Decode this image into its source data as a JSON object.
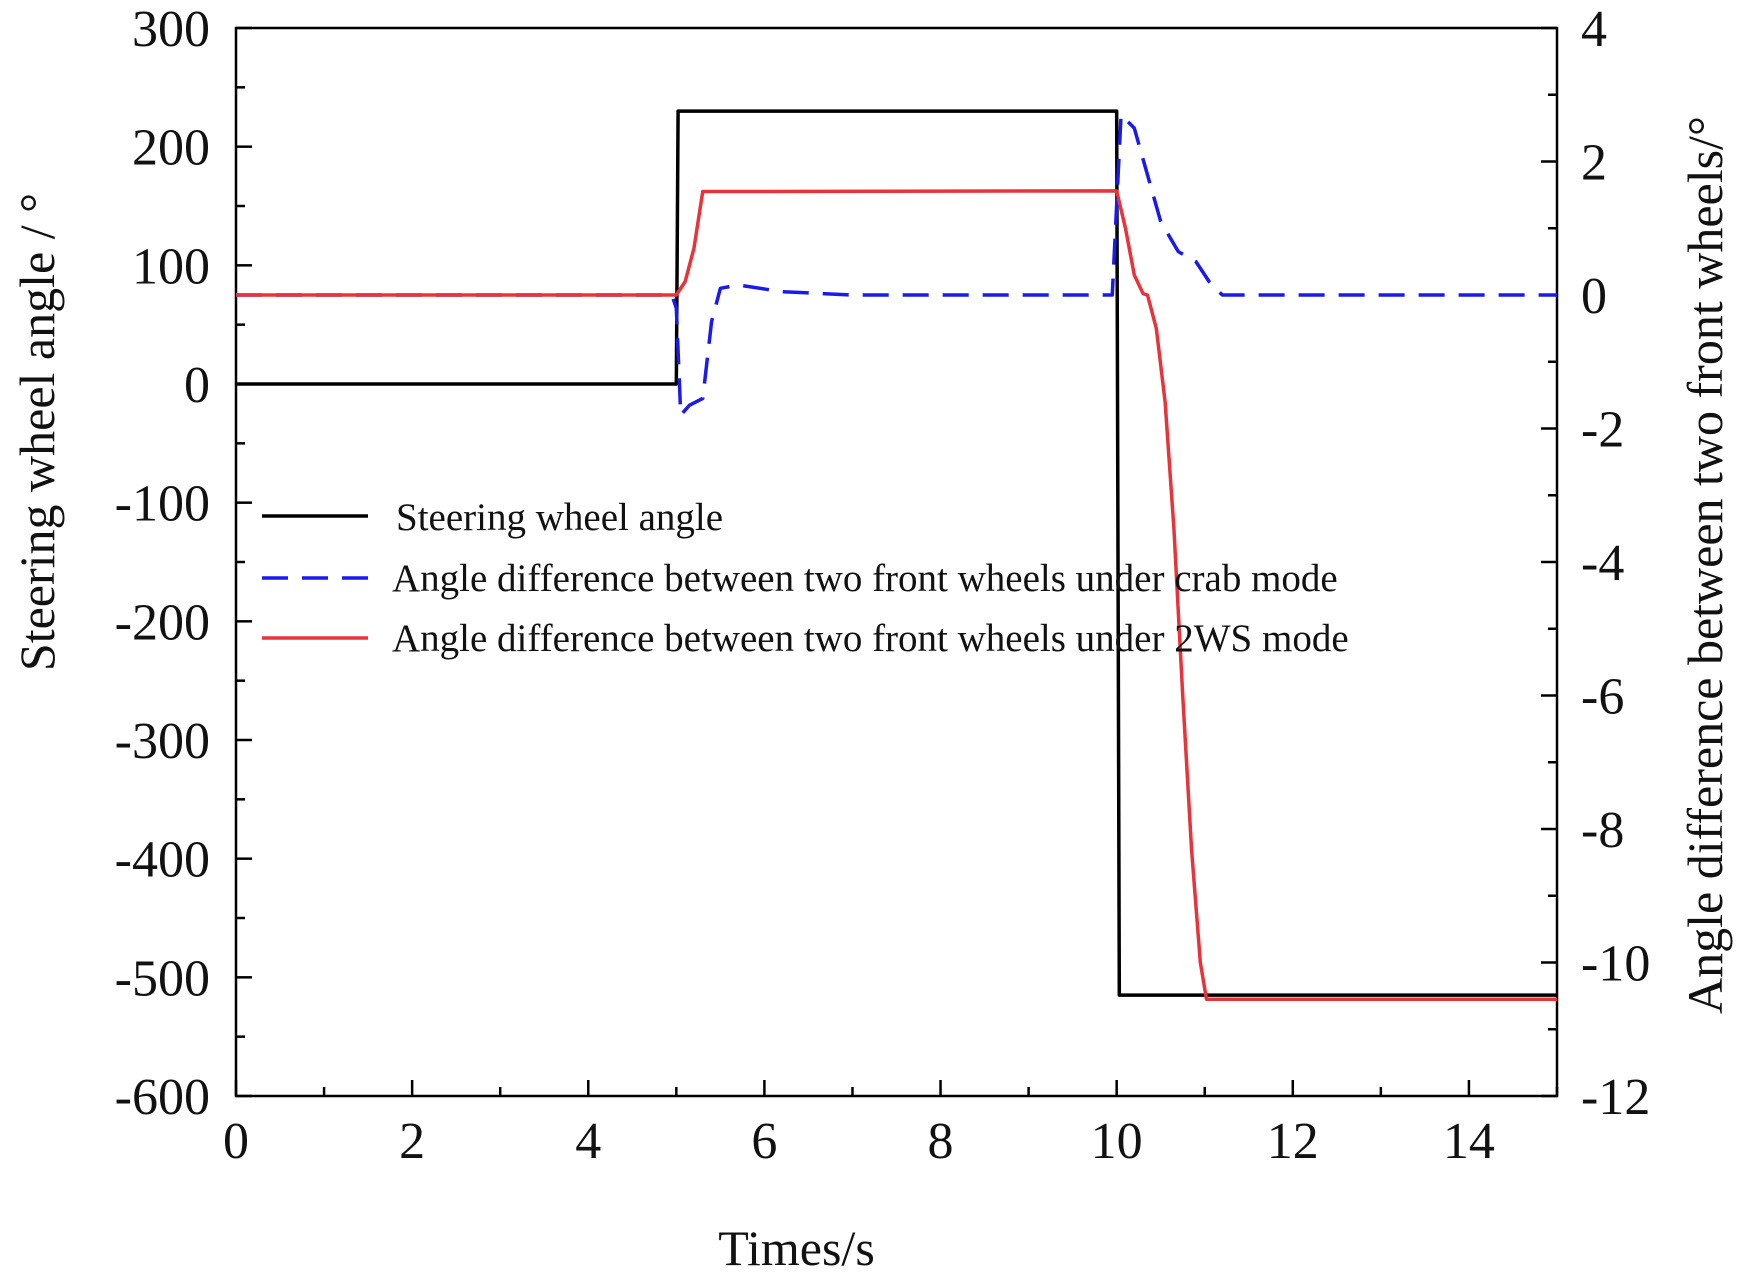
{
  "chart_data": {
    "type": "line",
    "xlabel": "Times/s",
    "ylabel_left": "Steering wheel angle / °",
    "ylabel_right": "Angle difference between two front wheels/°",
    "xlim": [
      0,
      15
    ],
    "ylim_left": [
      -600,
      300
    ],
    "ylim_right": [
      -12,
      4
    ],
    "x_ticks": [
      "0",
      "2",
      "4",
      "6",
      "8",
      "10",
      "12",
      "14"
    ],
    "y_left_ticks": [
      "300",
      "200",
      "100",
      "0",
      "-100",
      "-200",
      "-300",
      "-400",
      "-500",
      "-600"
    ],
    "y_right_ticks": [
      "4",
      "2",
      "0",
      "-2",
      "-4",
      "-6",
      "-8",
      "-10",
      "-12"
    ],
    "legend_position": "center-left",
    "series": [
      {
        "name": "Steering wheel angle",
        "axis": "left",
        "color": "#000000",
        "style": "solid",
        "points": [
          [
            0,
            0
          ],
          [
            5.0,
            0
          ],
          [
            5.02,
            230
          ],
          [
            10.0,
            230
          ],
          [
            10.03,
            -515
          ],
          [
            15,
            -515
          ]
        ]
      },
      {
        "name": "Angle difference between two front wheels under crab mode",
        "axis": "right",
        "color": "#1a1aee",
        "style": "dashed",
        "points": [
          [
            0,
            0
          ],
          [
            4.95,
            0
          ],
          [
            5.0,
            -0.2
          ],
          [
            5.05,
            -1.8
          ],
          [
            5.15,
            -1.65
          ],
          [
            5.3,
            -1.55
          ],
          [
            5.4,
            -0.4
          ],
          [
            5.5,
            0.1
          ],
          [
            5.7,
            0.15
          ],
          [
            6.2,
            0.05
          ],
          [
            7,
            0
          ],
          [
            9.95,
            0
          ],
          [
            10.05,
            2.7
          ],
          [
            10.2,
            2.5
          ],
          [
            10.35,
            1.8
          ],
          [
            10.5,
            1.1
          ],
          [
            10.7,
            0.65
          ],
          [
            10.9,
            0.5
          ],
          [
            11.05,
            0.2
          ],
          [
            11.2,
            0
          ],
          [
            15,
            0
          ]
        ]
      },
      {
        "name": "Angle difference between two front wheels under 2WS mode",
        "axis": "right",
        "color": "#e8333a",
        "style": "solid",
        "points": [
          [
            0,
            0
          ],
          [
            5.0,
            0
          ],
          [
            5.1,
            0.2
          ],
          [
            5.2,
            0.7
          ],
          [
            5.3,
            1.55
          ],
          [
            10.0,
            1.56
          ],
          [
            10.1,
            1.0
          ],
          [
            10.2,
            0.3
          ],
          [
            10.3,
            0.02
          ],
          [
            10.35,
            0
          ],
          [
            10.45,
            -0.5
          ],
          [
            10.55,
            -1.6
          ],
          [
            10.65,
            -3.5
          ],
          [
            10.75,
            -6.0
          ],
          [
            10.85,
            -8.3
          ],
          [
            10.95,
            -10.0
          ],
          [
            11.02,
            -10.55
          ],
          [
            15,
            -10.55
          ]
        ]
      }
    ]
  }
}
